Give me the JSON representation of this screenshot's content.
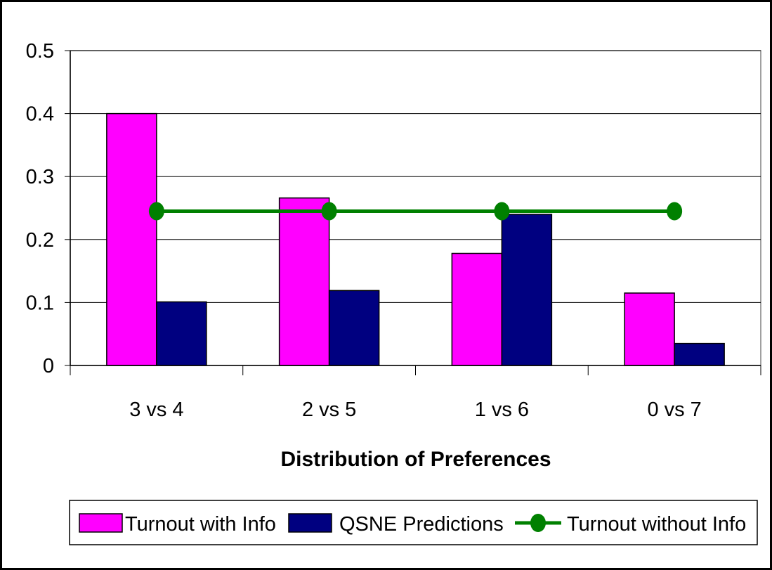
{
  "chart_data": {
    "type": "bar",
    "categories": [
      "3 vs 4",
      "2 vs 5",
      "1 vs 6",
      "0 vs 7"
    ],
    "series": [
      {
        "name": "Turnout with Info",
        "kind": "bar",
        "color": "#ff00ff",
        "values": [
          0.4,
          0.266,
          0.178,
          0.115
        ]
      },
      {
        "name": "QSNE Predictions",
        "kind": "bar",
        "color": "#000080",
        "values": [
          0.101,
          0.119,
          0.24,
          0.035
        ]
      },
      {
        "name": "Turnout without Info",
        "kind": "line",
        "color": "#008000",
        "values": [
          0.245,
          0.245,
          0.245,
          0.245
        ]
      }
    ],
    "title": "",
    "xlabel": "Distribution of Preferences",
    "ylabel": "",
    "ylim": [
      0,
      0.5
    ],
    "yticks": [
      "0",
      "0.1",
      "0.2",
      "0.3",
      "0.4",
      "0.5"
    ],
    "grid": "horizontal",
    "legend": "bottom"
  }
}
